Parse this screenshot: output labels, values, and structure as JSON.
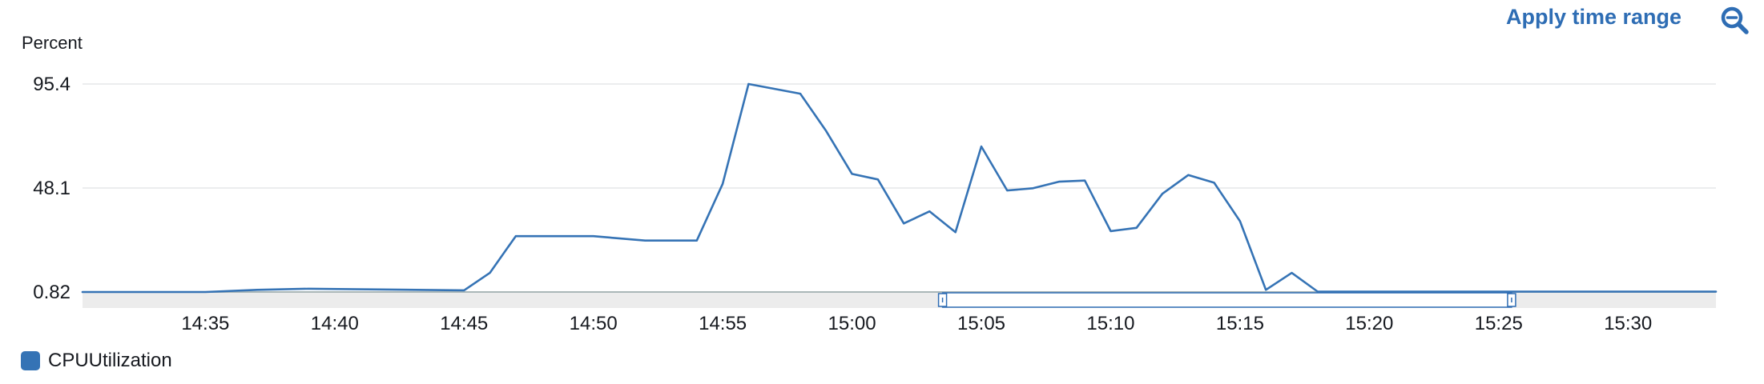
{
  "toolbar": {
    "apply_label": "Apply time range",
    "zoom_icon": "zoom-out-icon"
  },
  "colors": {
    "series": "#3573b5",
    "grid": "#e6e7e8",
    "axis": "#aab7b8",
    "brush_band": "#ececec",
    "accent": "#2e6db4"
  },
  "chart_data": {
    "type": "line",
    "ylabel": "Percent",
    "xlabel": "",
    "y_ticks": [
      "95.4",
      "48.1",
      "0.82"
    ],
    "y_tick_values": [
      95.4,
      48.1,
      0.82
    ],
    "ylim": [
      0.82,
      95.4
    ],
    "x_ticks": [
      "14:35",
      "14:40",
      "14:45",
      "14:50",
      "14:55",
      "15:00",
      "15:05",
      "15:10",
      "15:15",
      "15:20",
      "15:25",
      "15:30"
    ],
    "x_tick_minutes": [
      35,
      40,
      45,
      50,
      55,
      60,
      65,
      70,
      75,
      80,
      85,
      90
    ],
    "xlim_minutes": [
      30.25,
      93.4
    ],
    "grid": true,
    "legend_position": "bottom-left",
    "series": [
      {
        "name": "CPUUtilization",
        "color": "#3573b5",
        "points": [
          [
            30.25,
            0.82
          ],
          [
            35,
            0.82
          ],
          [
            37,
            1.8
          ],
          [
            39,
            2.3
          ],
          [
            45,
            1.6
          ],
          [
            46,
            9.5
          ],
          [
            47,
            26.2
          ],
          [
            50,
            26.2
          ],
          [
            52,
            24.2
          ],
          [
            54,
            24.2
          ],
          [
            55,
            50
          ],
          [
            56,
            95.4
          ],
          [
            58,
            91
          ],
          [
            59,
            74
          ],
          [
            60,
            54.5
          ],
          [
            61,
            52
          ],
          [
            62,
            32
          ],
          [
            63,
            37.5
          ],
          [
            64,
            28
          ],
          [
            65,
            67
          ],
          [
            66,
            47
          ],
          [
            67,
            48
          ],
          [
            68,
            51
          ],
          [
            69,
            51.5
          ],
          [
            70,
            28.5
          ],
          [
            71,
            30
          ],
          [
            72,
            45.5
          ],
          [
            73,
            54
          ],
          [
            74,
            50.5
          ],
          [
            75,
            33
          ],
          [
            76,
            1.8
          ],
          [
            77,
            9.5
          ],
          [
            78,
            1
          ],
          [
            93.4,
            1
          ]
        ]
      }
    ],
    "selection": {
      "start": "15:03",
      "end": "15:25"
    },
    "selection_minutes": [
      63.5,
      85.5
    ]
  }
}
